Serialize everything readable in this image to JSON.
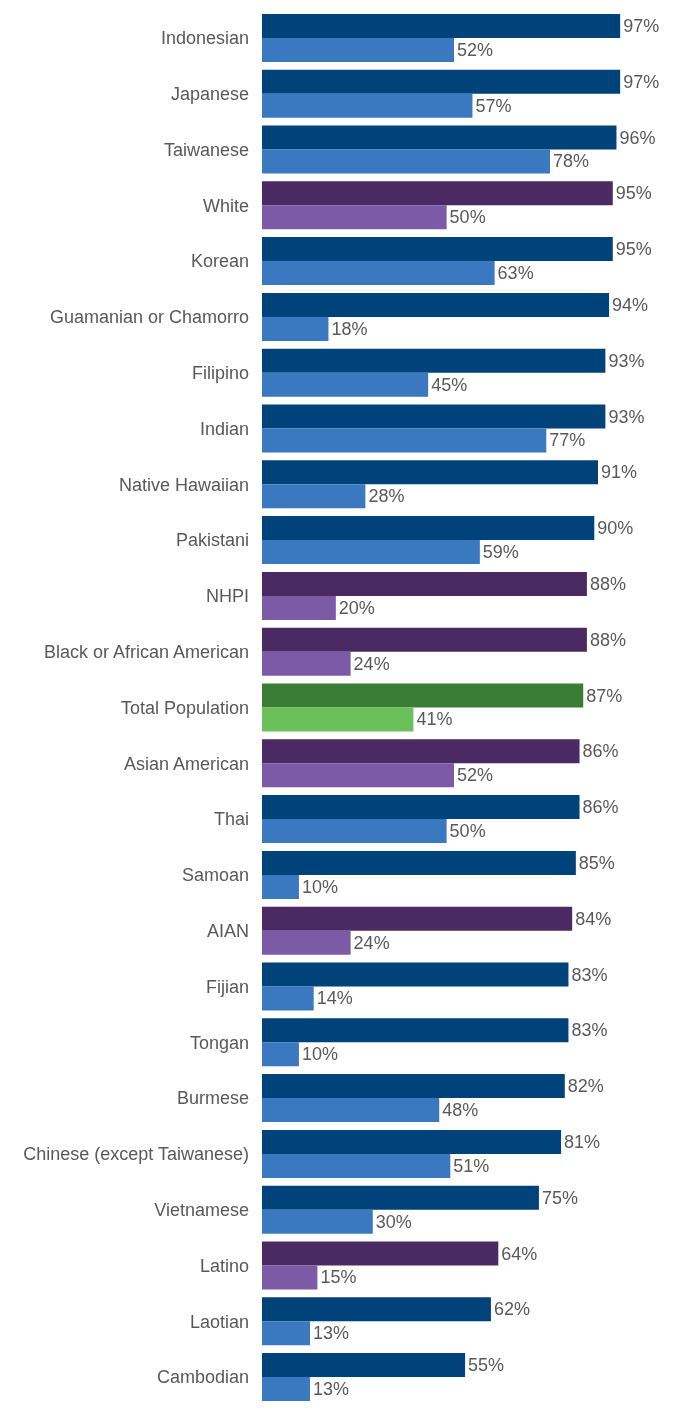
{
  "chart_data": {
    "type": "bar",
    "orientation": "horizontal",
    "tick_labels": "y",
    "categories": [
      "Indonesian",
      "Japanese",
      "Taiwanese",
      "White",
      "Korean",
      "Guamanian or Chamorro",
      "Filipino",
      "Indian",
      "Native Hawaiian",
      "Pakistani",
      "NHPI",
      "Black or African American",
      "Total Population",
      "Asian American",
      "Thai",
      "Samoan",
      "AIAN",
      "Fijian",
      "Tongan",
      "Burmese",
      "Chinese (except Taiwanese)",
      "Vietnamese",
      "Latino",
      "Laotian",
      "Cambodian"
    ],
    "series": [
      {
        "values": [
          97,
          97,
          96,
          95,
          95,
          94,
          93,
          93,
          91,
          90,
          88,
          88,
          87,
          86,
          86,
          85,
          84,
          83,
          83,
          82,
          81,
          75,
          64,
          62,
          55
        ],
        "value_labels": [
          "97%",
          "97%",
          "96%",
          "95%",
          "95%",
          "94%",
          "93%",
          "93%",
          "91%",
          "90%",
          "88%",
          "88%",
          "87%",
          "86%",
          "86%",
          "85%",
          "84%",
          "83%",
          "83%",
          "82%",
          "81%",
          "75%",
          "64%",
          "62%",
          "55%"
        ],
        "colors": [
          "#00427a",
          "#00427a",
          "#00427a",
          "#4b2a63",
          "#00427a",
          "#00427a",
          "#00427a",
          "#00427a",
          "#00427a",
          "#00427a",
          "#4b2a63",
          "#4b2a63",
          "#3a7d35",
          "#4b2a63",
          "#00427a",
          "#00427a",
          "#4b2a63",
          "#00427a",
          "#00427a",
          "#00427a",
          "#00427a",
          "#00427a",
          "#4b2a63",
          "#00427a",
          "#00427a"
        ]
      },
      {
        "values": [
          52,
          57,
          78,
          50,
          63,
          18,
          45,
          77,
          28,
          59,
          20,
          24,
          41,
          52,
          50,
          10,
          24,
          14,
          10,
          48,
          51,
          30,
          15,
          13,
          13
        ],
        "value_labels": [
          "52%",
          "57%",
          "78%",
          "50%",
          "63%",
          "18%",
          "45%",
          "77%",
          "28%",
          "59%",
          "20%",
          "24%",
          "41%",
          "52%",
          "50%",
          "10%",
          "24%",
          "14%",
          "10%",
          "48%",
          "51%",
          "30%",
          "15%",
          "13%",
          "13%"
        ],
        "colors": [
          "#3a78c0",
          "#3a78c0",
          "#3a78c0",
          "#7d5aa6",
          "#3a78c0",
          "#3a78c0",
          "#3a78c0",
          "#3a78c0",
          "#3a78c0",
          "#3a78c0",
          "#7d5aa6",
          "#7d5aa6",
          "#6cc05a",
          "#7d5aa6",
          "#3a78c0",
          "#3a78c0",
          "#7d5aa6",
          "#3a78c0",
          "#3a78c0",
          "#3a78c0",
          "#3a78c0",
          "#3a78c0",
          "#7d5aa6",
          "#3a78c0",
          "#3a78c0"
        ]
      }
    ]
  }
}
